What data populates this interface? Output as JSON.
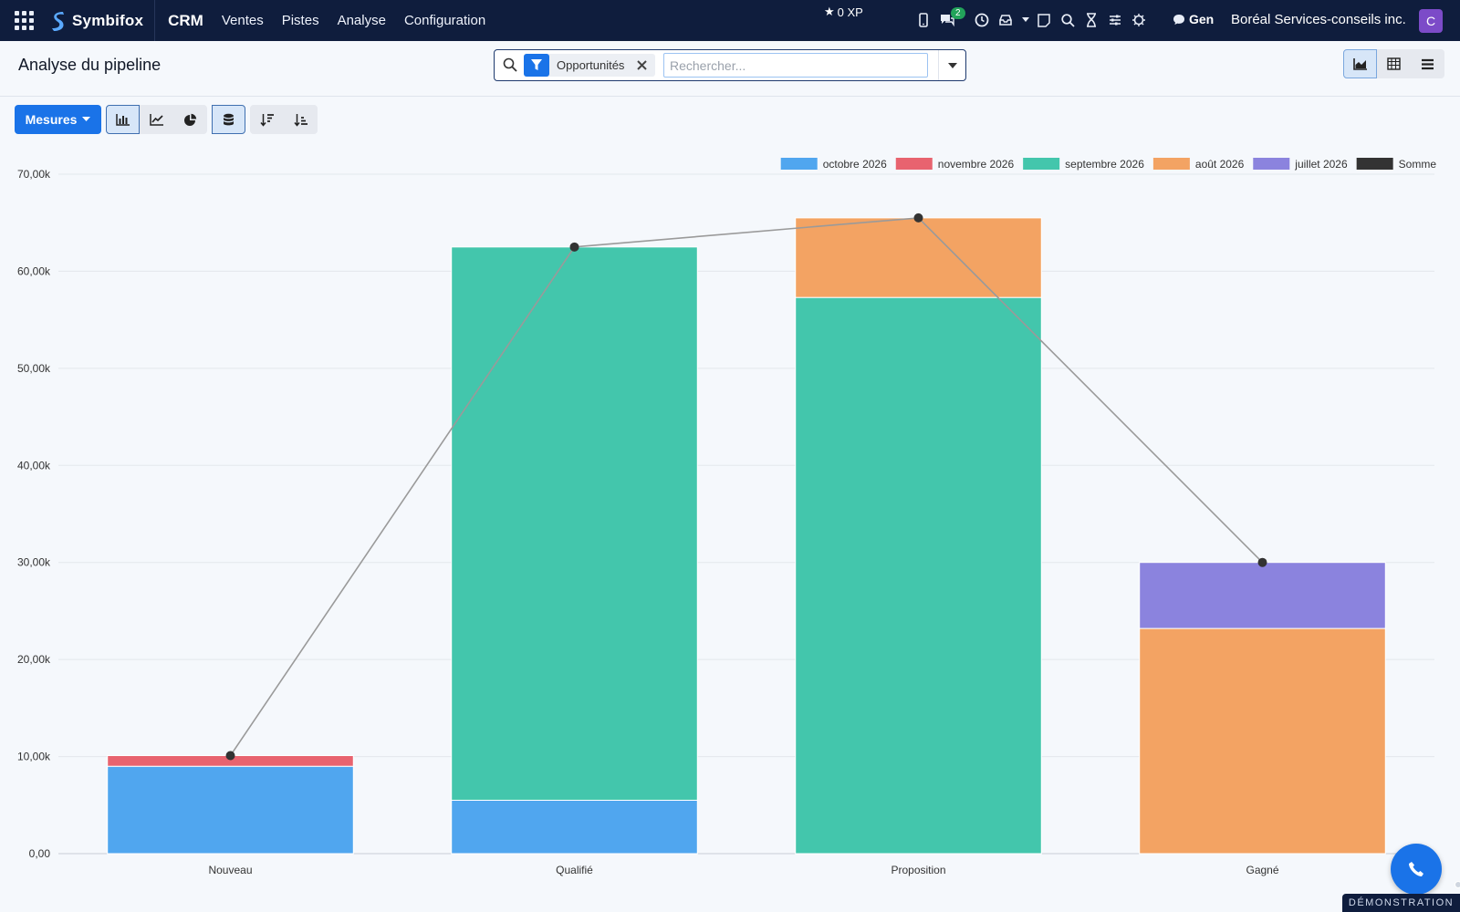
{
  "navbar": {
    "brand": "Symbifox",
    "app": "CRM",
    "menus": [
      "Ventes",
      "Pistes",
      "Analyse",
      "Configuration"
    ],
    "xp": "0 XP",
    "messages_badge": "2",
    "gen_label": "Gen",
    "company": "Boréal Services-conseils inc.",
    "avatar_initial": "C",
    "icons": [
      "apps-grid-icon",
      "phone-icon",
      "chat-icon",
      "clock-icon",
      "inbox-icon",
      "note-icon",
      "search-icon",
      "hourglass-icon",
      "sliders-icon",
      "bug-icon",
      "comment-icon"
    ]
  },
  "control": {
    "title": "Analyse du pipeline",
    "facet_label": "Opportunités",
    "search_placeholder": "Rechercher...",
    "views": [
      "graph-view",
      "pivot-view",
      "list-view"
    ],
    "active_view": "graph-view"
  },
  "toolbar": {
    "measures_label": "Mesures",
    "chart_types": [
      "bar",
      "line",
      "pie"
    ],
    "active_chart_type": "bar",
    "stacked": true,
    "sort": [
      "descending",
      "ascending"
    ]
  },
  "chart_data": {
    "type": "bar",
    "stacked": true,
    "categories": [
      "Nouveau",
      "Qualifié",
      "Proposition",
      "Gagné"
    ],
    "series": [
      {
        "name": "octobre 2026",
        "color": "#50a6ef",
        "values": [
          9000,
          5500,
          0,
          0
        ]
      },
      {
        "name": "novembre 2026",
        "color": "#e8636f",
        "values": [
          1100,
          0,
          0,
          0
        ]
      },
      {
        "name": "septembre 2026",
        "color": "#43c6ac",
        "values": [
          0,
          57000,
          57300,
          0
        ]
      },
      {
        "name": "août 2026",
        "color": "#f3a363",
        "values": [
          0,
          0,
          8200,
          23200
        ]
      },
      {
        "name": "juillet 2026",
        "color": "#8b83de",
        "values": [
          0,
          0,
          0,
          6800
        ]
      }
    ],
    "sum_series": {
      "name": "Somme",
      "color": "#333333",
      "values": [
        10100,
        62500,
        65500,
        30000
      ]
    },
    "yaxis": {
      "ticks": [
        "0,00",
        "10,00k",
        "20,00k",
        "30,00k",
        "40,00k",
        "50,00k",
        "60,00k",
        "70,00k"
      ],
      "ylim": [
        0,
        70000
      ]
    },
    "legend_position": "top-right",
    "grid": true
  },
  "floating": {
    "demo_label": "DÉMONSTRATION"
  }
}
